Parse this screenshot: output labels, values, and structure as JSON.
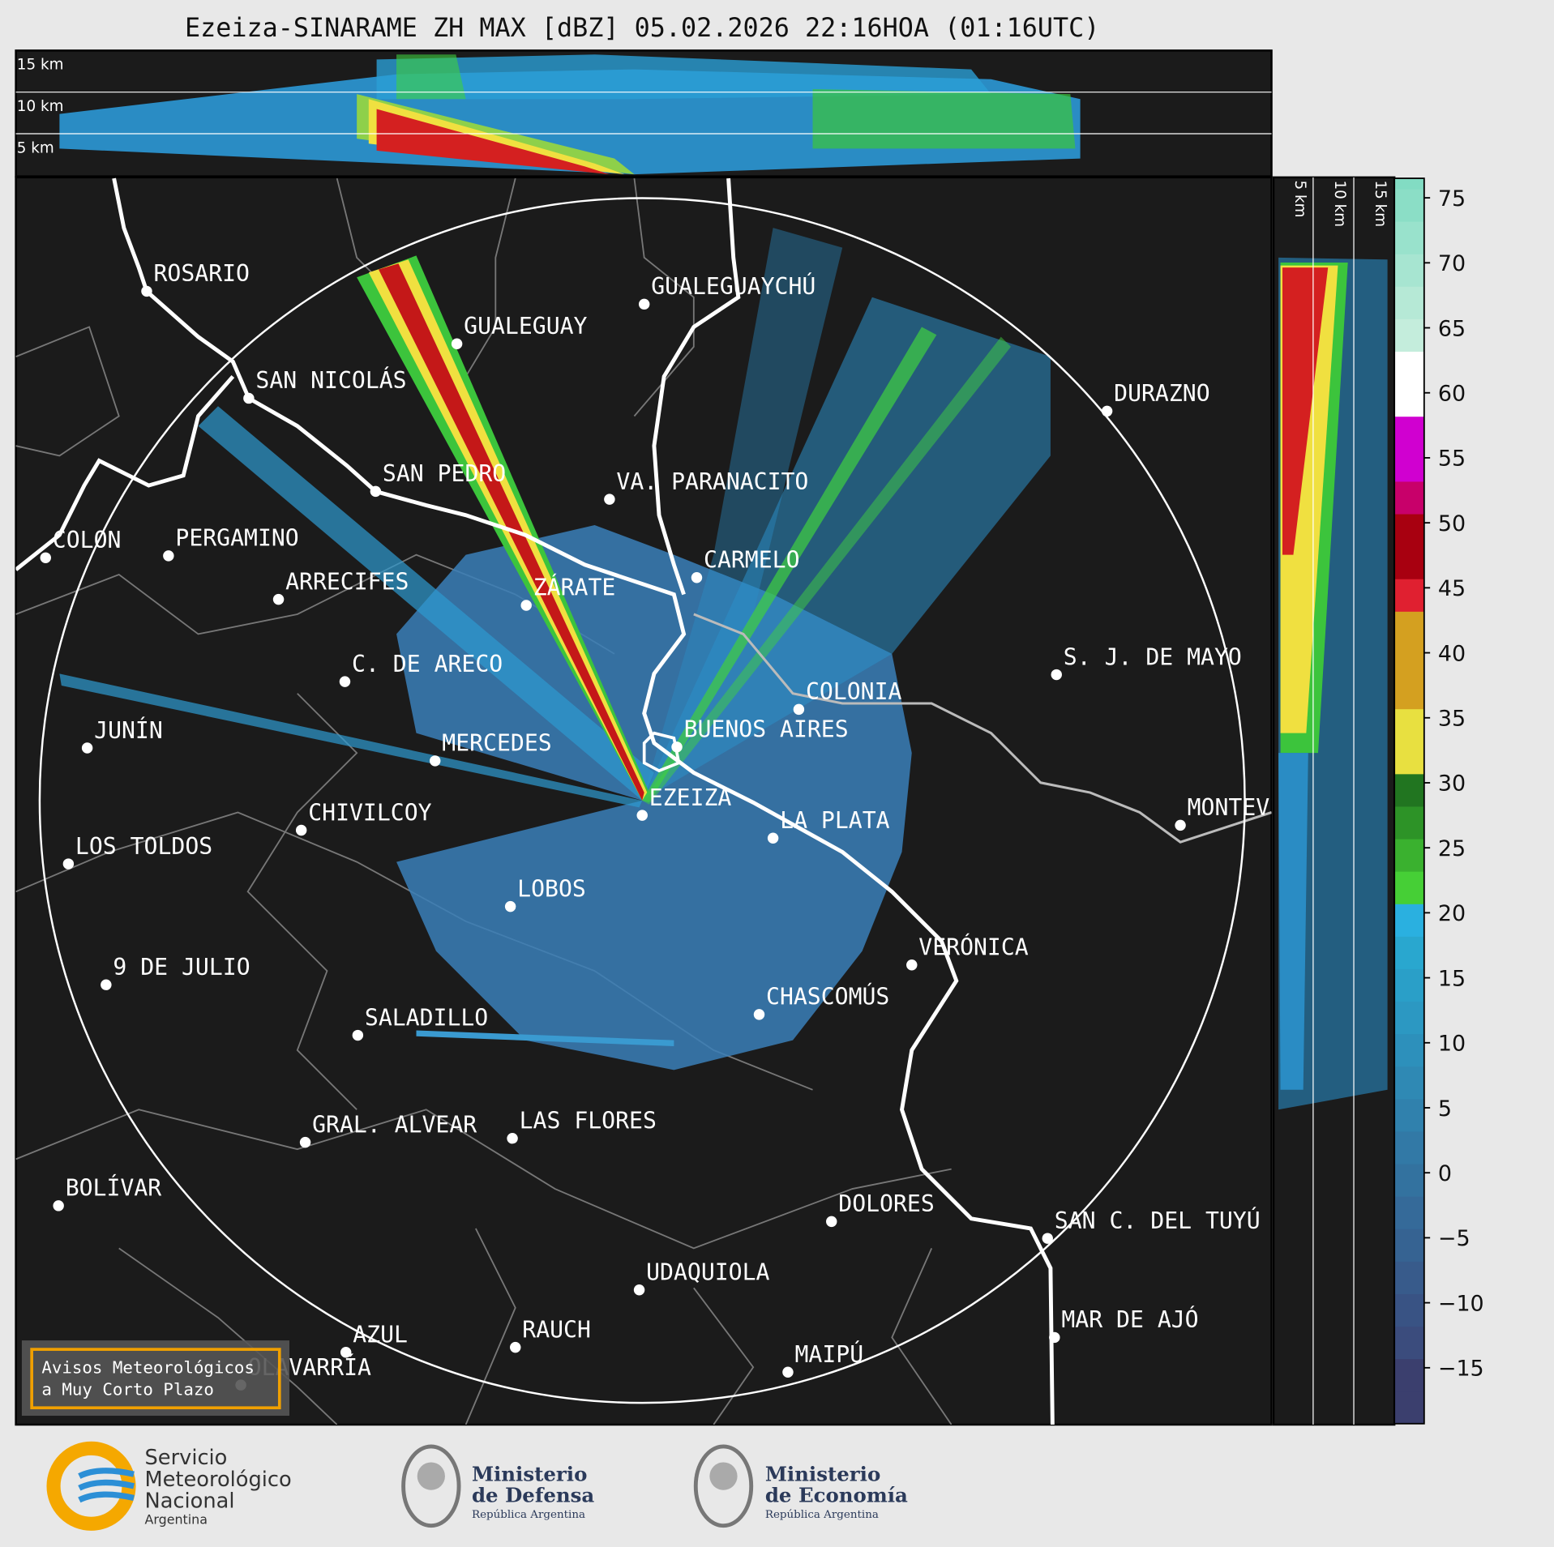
{
  "header": {
    "title": "Ezeiza-SINARAME ZH MAX [dBZ] 05.02.2026 22:16HOA (01:16UTC)"
  },
  "cross_section_top": {
    "height_labels": [
      "15 km",
      "10 km",
      "5 km"
    ]
  },
  "cross_section_right": {
    "height_labels": [
      "5 km",
      "10 km",
      "15 km"
    ]
  },
  "map": {
    "cities": [
      "ROSARIO",
      "GUALEGUAYCHÚ",
      "GUALEGUAY",
      "SAN NICOLÁS",
      "DURAZNO",
      "SAN PEDRO",
      "VA. PARANACITO",
      "COLON",
      "PERGAMINO",
      "CARMELO",
      "ARRECIFES",
      "ZÁRATE",
      "S. J. DE MAYO",
      "C. DE ARECO",
      "COLONIA",
      "BUENOS AIRES",
      "JUNÍN",
      "MERCEDES",
      "EZEIZA",
      "CHIVILCOY",
      "MONTEVIDEO",
      "LA PLATA",
      "LOS TOLDOS",
      "LOBOS",
      "VERÓNICA",
      "9 DE JULIO",
      "CHASCOMÚS",
      "SALADILLO",
      "LAS FLORES",
      "GRAL. ALVEAR",
      "BOLÍVAR",
      "DOLORES",
      "SAN C. DEL TUYÚ",
      "UDAQUIOLA",
      "MAR DE AJÓ",
      "RAUCH",
      "AZUL",
      "OLAVARRÍA",
      "MAIPÚ"
    ]
  },
  "colorbar": {
    "range": [
      -19.3,
      76.5
    ],
    "ticks": [
      {
        "value": -15,
        "label": "−15"
      },
      {
        "value": -10,
        "label": "−10"
      },
      {
        "value": -5,
        "label": "−5"
      },
      0,
      5,
      10,
      15,
      20,
      25,
      30,
      35,
      40,
      45,
      50,
      55,
      60,
      65,
      70,
      75
    ]
  },
  "notice": {
    "lines": [
      "Avisos Meteorológicos",
      "a Muy Corto Plazo"
    ]
  },
  "footer": {
    "smn": [
      "Servicio",
      "Meteorológico",
      "Nacional",
      "Argentina"
    ],
    "defensa": [
      "Ministerio",
      "de Defensa",
      "República Argentina"
    ],
    "economia": [
      "Ministerio",
      "de Economía",
      "República Argentina"
    ]
  }
}
